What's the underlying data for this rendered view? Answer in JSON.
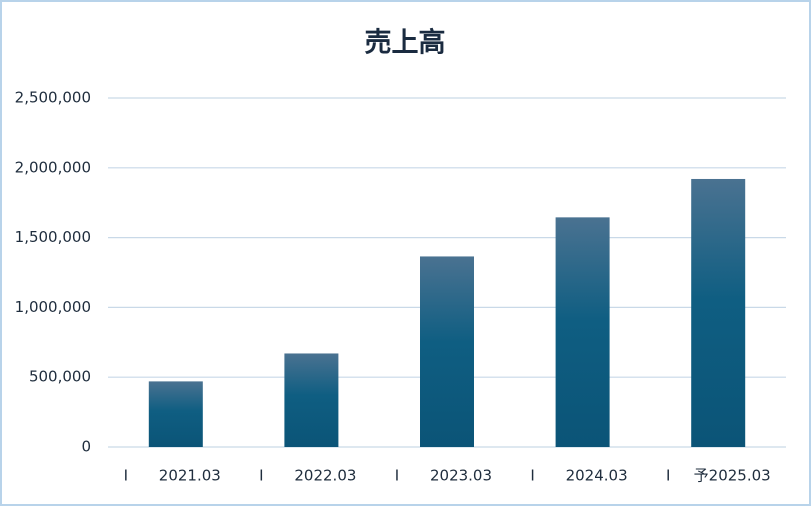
{
  "chart_data": {
    "type": "bar",
    "title": "売上高",
    "categories": [
      "2021.03",
      "2022.03",
      "2023.03",
      "2024.03",
      "予2025.03"
    ],
    "category_prefixes": [
      "I",
      "I",
      "I",
      "I",
      "I"
    ],
    "values": [
      470000,
      670000,
      1365000,
      1645000,
      1920000
    ],
    "color": "#0d5a7e",
    "ylim": [
      0,
      2500000
    ],
    "yticks": [
      0,
      {
        "value": 500000,
        "label": "500,000"
      },
      {
        "value": 1000000,
        "label": "1,000,000"
      },
      {
        "value": 1500000,
        "label": "1,500,000"
      },
      {
        "value": 2000000,
        "label": "2,000,000"
      },
      {
        "value": 2500000,
        "label": "2,500,000"
      }
    ],
    "grid": true
  }
}
